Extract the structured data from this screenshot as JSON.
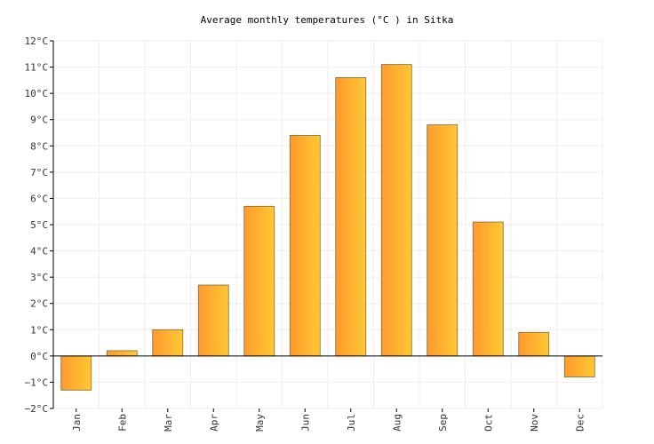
{
  "chart_data": {
    "type": "bar",
    "title": "Average monthly temperatures (°C ) in Sitka",
    "xlabel": "",
    "ylabel": "",
    "categories": [
      "Jan",
      "Feb",
      "Mar",
      "Apr",
      "May",
      "Jun",
      "Jul",
      "Aug",
      "Sep",
      "Oct",
      "Nov",
      "Dec"
    ],
    "values": [
      -1.3,
      0.2,
      1.0,
      2.7,
      5.7,
      8.4,
      10.6,
      11.1,
      8.8,
      5.1,
      0.9,
      -0.8
    ],
    "ylim": [
      -2,
      12
    ],
    "yticks": [
      "−2°C",
      "−1°C",
      "0°C",
      "1°C",
      "2°C",
      "3°C",
      "4°C",
      "5°C",
      "6°C",
      "7°C",
      "8°C",
      "9°C",
      "10°C",
      "11°C",
      "12°C"
    ],
    "grid": true,
    "legend": "none",
    "colors": {
      "bar_start": "#ff9a2e",
      "bar_end": "#ffc832",
      "bar_stroke": "#7a6a3a",
      "grid": "#eeeeee",
      "axis": "#000000"
    }
  }
}
